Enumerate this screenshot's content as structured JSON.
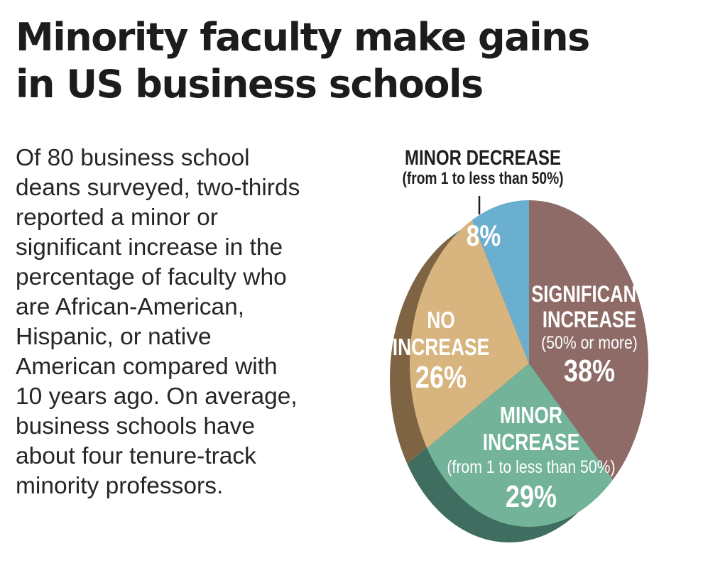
{
  "headline": {
    "lines": [
      "Minority faculty make gains",
      "in US business schools"
    ]
  },
  "body": {
    "lines": [
      "Of 80 business school",
      "deans surveyed, two-thirds",
      "reported a minor or",
      "significant increase in the",
      "percentage of faculty who",
      "are African-American,",
      "Hispanic, or native",
      "American compared with",
      "10 years ago. On average,",
      "business schools have",
      "about four tenure-track",
      "minority professors."
    ]
  },
  "chart_data": {
    "type": "pie",
    "style": "3d",
    "slices": [
      {
        "key": "significant",
        "label_lines": [
          "SIGNIFICANT",
          "INCREASE"
        ],
        "sublabel": "(50% or more)",
        "value": 38,
        "value_label": "38%",
        "color": "#8e6b66",
        "side_color": "#5e4440"
      },
      {
        "key": "minor_inc",
        "label_lines": [
          "MINOR",
          "INCREASE"
        ],
        "sublabel": "(from 1 to less than 50%)",
        "value": 29,
        "value_label": "29%",
        "color": "#72b39a",
        "side_color": "#3f6e60"
      },
      {
        "key": "no_inc",
        "label_lines": [
          "NO",
          "INCREASE"
        ],
        "sublabel": "",
        "value": 26,
        "value_label": "26%",
        "color": "#d8b47e",
        "side_color": "#7f6443"
      },
      {
        "key": "minor_dec",
        "label_lines": [
          "MINOR DECREASE"
        ],
        "sublabel": "(from 1 to less than 50%)",
        "value": 8,
        "value_label": "8%",
        "color": "#6aaed0",
        "side_color": "#3e6e8a"
      }
    ]
  }
}
